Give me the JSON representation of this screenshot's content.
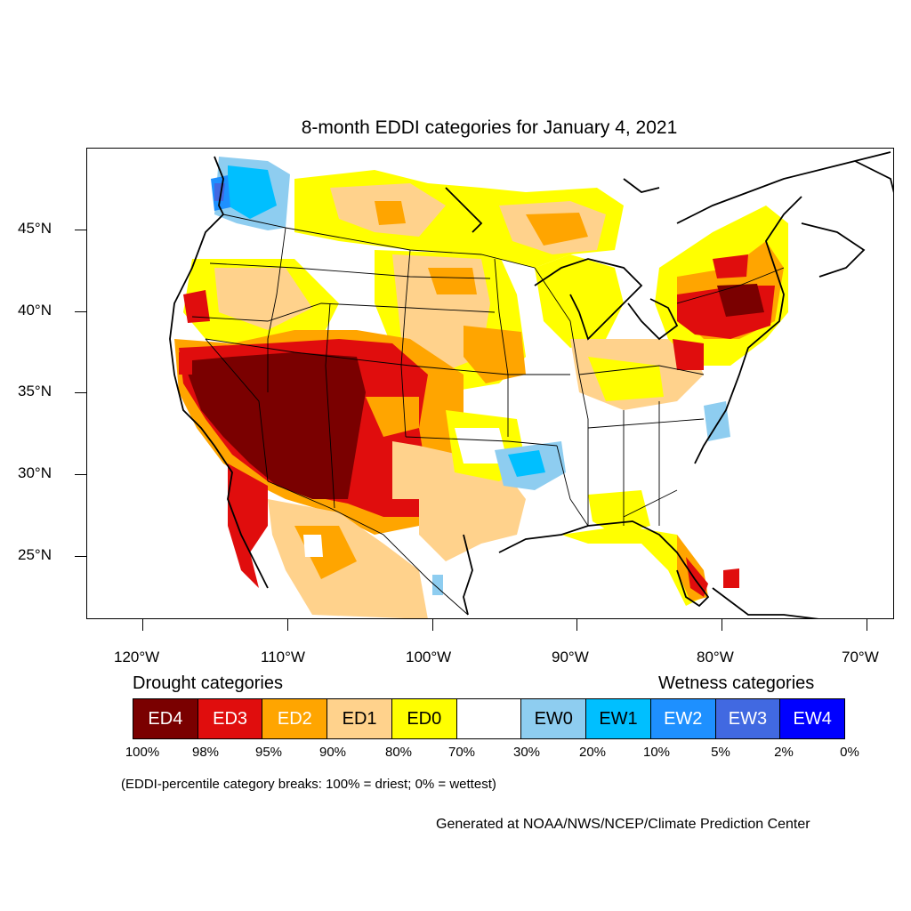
{
  "title": "8-month EDDI categories for January 4, 2021",
  "lat_labels": [
    "45°N",
    "40°N",
    "35°N",
    "30°N",
    "25°N"
  ],
  "lon_labels": [
    "120°W",
    "110°W",
    "100°W",
    "90°W",
    "80°W",
    "70°W"
  ],
  "legend": {
    "drought_heading": "Drought categories",
    "wetness_heading": "Wetness categories",
    "categories": [
      {
        "label": "ED4",
        "color": "#7a0000",
        "text_color": "#ffffff"
      },
      {
        "label": "ED3",
        "color": "#e00d0d",
        "text_color": "#ffffff"
      },
      {
        "label": "ED2",
        "color": "#ffa500",
        "text_color": "#ffffff"
      },
      {
        "label": "ED1",
        "color": "#ffd28c",
        "text_color": "#000000"
      },
      {
        "label": "ED0",
        "color": "#ffff00",
        "text_color": "#000000"
      },
      {
        "label": "",
        "color": "#ffffff",
        "text_color": "#000000"
      },
      {
        "label": "EW0",
        "color": "#8ecdf0",
        "text_color": "#000000"
      },
      {
        "label": "EW1",
        "color": "#00bfff",
        "text_color": "#000000"
      },
      {
        "label": "EW2",
        "color": "#1e90ff",
        "text_color": "#ffffff"
      },
      {
        "label": "EW3",
        "color": "#4169e1",
        "text_color": "#ffffff"
      },
      {
        "label": "EW4",
        "color": "#0000ff",
        "text_color": "#ffffff"
      }
    ],
    "percentiles": [
      "100%",
      "98%",
      "95%",
      "90%",
      "80%",
      "70%",
      "30%",
      "20%",
      "10%",
      "5%",
      "2%",
      "0%"
    ]
  },
  "break_note": "(EDDI-percentile category breaks: 100% = driest; 0% = wettest)",
  "credit": "Generated at NOAA/NWS/NCEP/Climate Prediction Center"
}
